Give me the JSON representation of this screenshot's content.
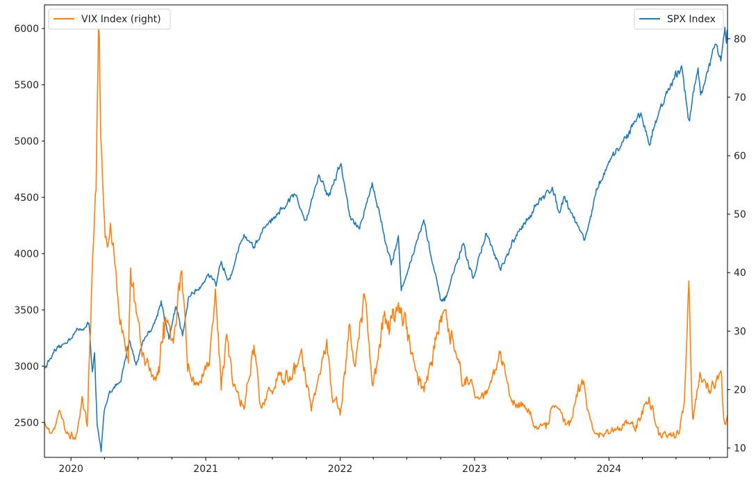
{
  "chart_data": {
    "type": "line",
    "x_axis": {
      "type": "date",
      "range": [
        "2019-10-21",
        "2024-11-18"
      ],
      "tick_labels": [
        "2020",
        "2021",
        "2022",
        "2023",
        "2024"
      ],
      "tick_dates": [
        "2020-01-01",
        "2021-01-01",
        "2022-01-01",
        "2023-01-01",
        "2024-01-01"
      ]
    },
    "y_left": {
      "range": [
        2190,
        6210
      ],
      "ticks": [
        2500,
        3000,
        3500,
        4000,
        4500,
        5000,
        5500,
        6000
      ]
    },
    "y_right": {
      "range": [
        8.4,
        85.8
      ],
      "ticks": [
        10,
        20,
        30,
        40,
        50,
        60,
        70,
        80
      ]
    },
    "grid": false,
    "legends": [
      {
        "placement": "top-left",
        "label": "VIX Index (right)",
        "color": "#ff7f0e"
      },
      {
        "placement": "top-right",
        "label": "SPX Index",
        "color": "#1f77b4"
      }
    ],
    "series": [
      {
        "name": "SPX Index",
        "axis": "left",
        "color": "#1f77b4",
        "points": [
          [
            "2019-10-21",
            2980
          ],
          [
            "2019-11-15",
            3120
          ],
          [
            "2019-12-15",
            3200
          ],
          [
            "2020-01-15",
            3310
          ],
          [
            "2020-02-10",
            3350
          ],
          [
            "2020-02-19",
            3380
          ],
          [
            "2020-02-28",
            2950
          ],
          [
            "2020-03-05",
            3120
          ],
          [
            "2020-03-12",
            2480
          ],
          [
            "2020-03-23",
            2240
          ],
          [
            "2020-03-31",
            2590
          ],
          [
            "2020-04-15",
            2780
          ],
          [
            "2020-05-15",
            2860
          ],
          [
            "2020-06-08",
            3230
          ],
          [
            "2020-06-26",
            3010
          ],
          [
            "2020-07-15",
            3230
          ],
          [
            "2020-08-15",
            3380
          ],
          [
            "2020-09-02",
            3580
          ],
          [
            "2020-09-23",
            3240
          ],
          [
            "2020-10-12",
            3530
          ],
          [
            "2020-10-30",
            3270
          ],
          [
            "2020-11-16",
            3620
          ],
          [
            "2020-12-15",
            3700
          ],
          [
            "2021-01-08",
            3820
          ],
          [
            "2021-01-29",
            3710
          ],
          [
            "2021-02-12",
            3930
          ],
          [
            "2021-03-04",
            3770
          ],
          [
            "2021-04-15",
            4170
          ],
          [
            "2021-05-12",
            4060
          ],
          [
            "2021-06-15",
            4250
          ],
          [
            "2021-07-20",
            4350
          ],
          [
            "2021-08-30",
            4530
          ],
          [
            "2021-09-30",
            4300
          ],
          [
            "2021-11-04",
            4700
          ],
          [
            "2021-12-01",
            4510
          ],
          [
            "2022-01-03",
            4800
          ],
          [
            "2022-01-27",
            4330
          ],
          [
            "2022-02-23",
            4220
          ],
          [
            "2022-03-29",
            4630
          ],
          [
            "2022-05-20",
            3900
          ],
          [
            "2022-06-08",
            4160
          ],
          [
            "2022-06-16",
            3670
          ],
          [
            "2022-08-16",
            4300
          ],
          [
            "2022-09-30",
            3590
          ],
          [
            "2022-10-12",
            3580
          ],
          [
            "2022-11-30",
            4080
          ],
          [
            "2022-12-28",
            3780
          ],
          [
            "2023-02-02",
            4180
          ],
          [
            "2023-03-13",
            3850
          ],
          [
            "2023-04-20",
            4130
          ],
          [
            "2023-06-15",
            4420
          ],
          [
            "2023-07-31",
            4590
          ],
          [
            "2023-08-18",
            4370
          ],
          [
            "2023-09-01",
            4510
          ],
          [
            "2023-10-27",
            4120
          ],
          [
            "2023-11-30",
            4570
          ],
          [
            "2023-12-28",
            4780
          ],
          [
            "2024-02-15",
            5030
          ],
          [
            "2024-03-28",
            5250
          ],
          [
            "2024-04-19",
            4970
          ],
          [
            "2024-05-20",
            5310
          ],
          [
            "2024-07-16",
            5670
          ],
          [
            "2024-08-05",
            5190
          ],
          [
            "2024-08-30",
            5650
          ],
          [
            "2024-09-06",
            5410
          ],
          [
            "2024-10-17",
            5860
          ],
          [
            "2024-10-31",
            5710
          ],
          [
            "2024-11-11",
            6010
          ],
          [
            "2024-11-15",
            5870
          ],
          [
            "2024-11-18",
            5990
          ]
        ]
      },
      {
        "name": "VIX Index",
        "axis": "right",
        "color": "#ff7f0e",
        "points": [
          [
            "2019-10-21",
            14.5
          ],
          [
            "2019-11-08",
            12.5
          ],
          [
            "2019-12-03",
            16
          ],
          [
            "2019-12-20",
            12.5
          ],
          [
            "2020-01-15",
            12.3
          ],
          [
            "2020-01-31",
            18.8
          ],
          [
            "2020-02-14",
            13.7
          ],
          [
            "2020-02-27",
            39.2
          ],
          [
            "2020-03-09",
            54
          ],
          [
            "2020-03-16",
            82.7
          ],
          [
            "2020-03-24",
            61
          ],
          [
            "2020-04-03",
            46
          ],
          [
            "2020-04-21",
            45
          ],
          [
            "2020-05-15",
            31.9
          ],
          [
            "2020-06-05",
            24.5
          ],
          [
            "2020-06-11",
            40.8
          ],
          [
            "2020-07-10",
            27.3
          ],
          [
            "2020-08-07",
            22.2
          ],
          [
            "2020-08-28",
            22.9
          ],
          [
            "2020-09-08",
            31.5
          ],
          [
            "2020-10-05",
            27.9
          ],
          [
            "2020-10-28",
            40.3
          ],
          [
            "2020-11-13",
            23.1
          ],
          [
            "2020-12-10",
            21.2
          ],
          [
            "2021-01-11",
            24.1
          ],
          [
            "2021-01-27",
            37.2
          ],
          [
            "2021-02-12",
            19.9
          ],
          [
            "2021-02-25",
            28.9
          ],
          [
            "2021-03-19",
            20.9
          ],
          [
            "2021-04-15",
            16.6
          ],
          [
            "2021-05-12",
            27.6
          ],
          [
            "2021-06-01",
            16.8
          ],
          [
            "2021-07-19",
            22.5
          ],
          [
            "2021-08-19",
            21.6
          ],
          [
            "2021-09-20",
            25.7
          ],
          [
            "2021-10-15",
            16.3
          ],
          [
            "2021-11-26",
            28.6
          ],
          [
            "2021-12-10",
            18.7
          ],
          [
            "2022-01-03",
            16.6
          ],
          [
            "2022-01-27",
            31.2
          ],
          [
            "2022-02-10",
            23.9
          ],
          [
            "2022-03-07",
            36.4
          ],
          [
            "2022-03-31",
            20.6
          ],
          [
            "2022-05-02",
            33.4
          ],
          [
            "2022-05-12",
            31.7
          ],
          [
            "2022-06-16",
            34
          ],
          [
            "2022-07-29",
            22.9
          ],
          [
            "2022-08-17",
            19.6
          ],
          [
            "2022-09-30",
            31.6
          ],
          [
            "2022-10-13",
            33.6
          ],
          [
            "2022-11-30",
            20.6
          ],
          [
            "2022-12-20",
            21.3
          ],
          [
            "2023-01-15",
            18.4
          ],
          [
            "2023-02-10",
            20.5
          ],
          [
            "2023-03-13",
            26.5
          ],
          [
            "2023-04-12",
            17.9
          ],
          [
            "2023-05-15",
            17.1
          ],
          [
            "2023-06-20",
            13.2
          ],
          [
            "2023-07-14",
            13.3
          ],
          [
            "2023-08-04",
            17.1
          ],
          [
            "2023-09-15",
            13.8
          ],
          [
            "2023-10-20",
            21.7
          ],
          [
            "2023-11-21",
            12.9
          ],
          [
            "2023-12-15",
            12.3
          ],
          [
            "2024-01-15",
            13.1
          ],
          [
            "2024-02-15",
            14.4
          ],
          [
            "2024-03-15",
            13.9
          ],
          [
            "2024-04-19",
            18.7
          ],
          [
            "2024-05-15",
            12.2
          ],
          [
            "2024-06-15",
            12.2
          ],
          [
            "2024-07-10",
            12.5
          ],
          [
            "2024-07-24",
            18
          ],
          [
            "2024-08-05",
            38.6
          ],
          [
            "2024-08-15",
            15.3
          ],
          [
            "2024-09-06",
            22.4
          ],
          [
            "2024-10-02",
            19.3
          ],
          [
            "2024-10-31",
            23.2
          ],
          [
            "2024-11-08",
            14.9
          ],
          [
            "2024-11-14",
            14.3
          ],
          [
            "2024-11-18",
            15.6
          ]
        ]
      }
    ]
  }
}
